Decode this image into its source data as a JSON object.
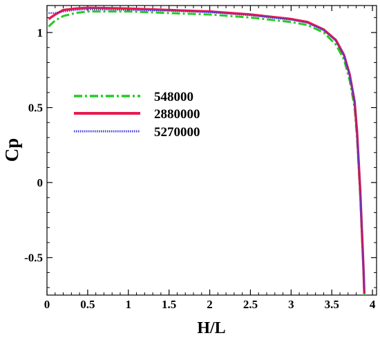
{
  "chart_data": {
    "type": "line",
    "xlabel": "H/L",
    "ylabel": "Cp",
    "xlim": [
      0,
      4.05
    ],
    "ylim": [
      -0.75,
      1.18
    ],
    "x_ticks": [
      0,
      0.5,
      1,
      1.5,
      2,
      2.5,
      3,
      3.5,
      4
    ],
    "x_tick_labels": [
      "0",
      "0.5",
      "1",
      "1.5",
      "2",
      "2.5",
      "3",
      "3.5",
      "4"
    ],
    "y_ticks": [
      -0.5,
      0,
      0.5,
      1
    ],
    "y_tick_labels": [
      "-0.5",
      "0",
      "0.5",
      "1"
    ],
    "grid": false,
    "legend_position": "center-left",
    "series": [
      {
        "name": "548000",
        "color": "#22cc22",
        "style": "dash-dot",
        "points": [
          [
            0.02,
            1.04
          ],
          [
            0.1,
            1.08
          ],
          [
            0.2,
            1.11
          ],
          [
            0.35,
            1.13
          ],
          [
            0.5,
            1.14
          ],
          [
            1,
            1.14
          ],
          [
            1.5,
            1.13
          ],
          [
            2,
            1.12
          ],
          [
            2.5,
            1.1
          ],
          [
            3,
            1.07
          ],
          [
            3.2,
            1.05
          ],
          [
            3.4,
            1.0
          ],
          [
            3.55,
            0.92
          ],
          [
            3.65,
            0.82
          ],
          [
            3.72,
            0.68
          ],
          [
            3.78,
            0.5
          ],
          [
            3.81,
            0.3
          ],
          [
            3.83,
            0.1
          ],
          [
            3.85,
            -0.1
          ],
          [
            3.87,
            -0.35
          ],
          [
            3.89,
            -0.6
          ],
          [
            3.9,
            -0.75
          ]
        ]
      },
      {
        "name": "2880000",
        "color": "#e8194e",
        "style": "solid",
        "points": [
          [
            0.02,
            1.09
          ],
          [
            0.1,
            1.12
          ],
          [
            0.2,
            1.15
          ],
          [
            0.35,
            1.16
          ],
          [
            0.5,
            1.165
          ],
          [
            1,
            1.16
          ],
          [
            1.5,
            1.15
          ],
          [
            2,
            1.14
          ],
          [
            2.5,
            1.12
          ],
          [
            3,
            1.09
          ],
          [
            3.2,
            1.07
          ],
          [
            3.4,
            1.02
          ],
          [
            3.55,
            0.95
          ],
          [
            3.65,
            0.85
          ],
          [
            3.72,
            0.72
          ],
          [
            3.78,
            0.54
          ],
          [
            3.81,
            0.34
          ],
          [
            3.83,
            0.14
          ],
          [
            3.85,
            -0.06
          ],
          [
            3.87,
            -0.32
          ],
          [
            3.89,
            -0.58
          ],
          [
            3.9,
            -0.74
          ]
        ]
      },
      {
        "name": "5270000",
        "color": "#3a3adc",
        "style": "dotted",
        "points": [
          [
            0.02,
            1.13
          ],
          [
            0.1,
            1.13
          ],
          [
            0.2,
            1.14
          ],
          [
            0.35,
            1.15
          ],
          [
            0.5,
            1.155
          ],
          [
            1,
            1.15
          ],
          [
            1.5,
            1.145
          ],
          [
            2,
            1.135
          ],
          [
            2.5,
            1.115
          ],
          [
            3,
            1.085
          ],
          [
            3.2,
            1.065
          ],
          [
            3.4,
            1.015
          ],
          [
            3.55,
            0.945
          ],
          [
            3.65,
            0.845
          ],
          [
            3.72,
            0.715
          ],
          [
            3.78,
            0.535
          ],
          [
            3.81,
            0.335
          ],
          [
            3.83,
            0.135
          ],
          [
            3.85,
            -0.065
          ],
          [
            3.87,
            -0.32
          ],
          [
            3.89,
            -0.58
          ],
          [
            3.9,
            -0.74
          ]
        ]
      }
    ]
  }
}
